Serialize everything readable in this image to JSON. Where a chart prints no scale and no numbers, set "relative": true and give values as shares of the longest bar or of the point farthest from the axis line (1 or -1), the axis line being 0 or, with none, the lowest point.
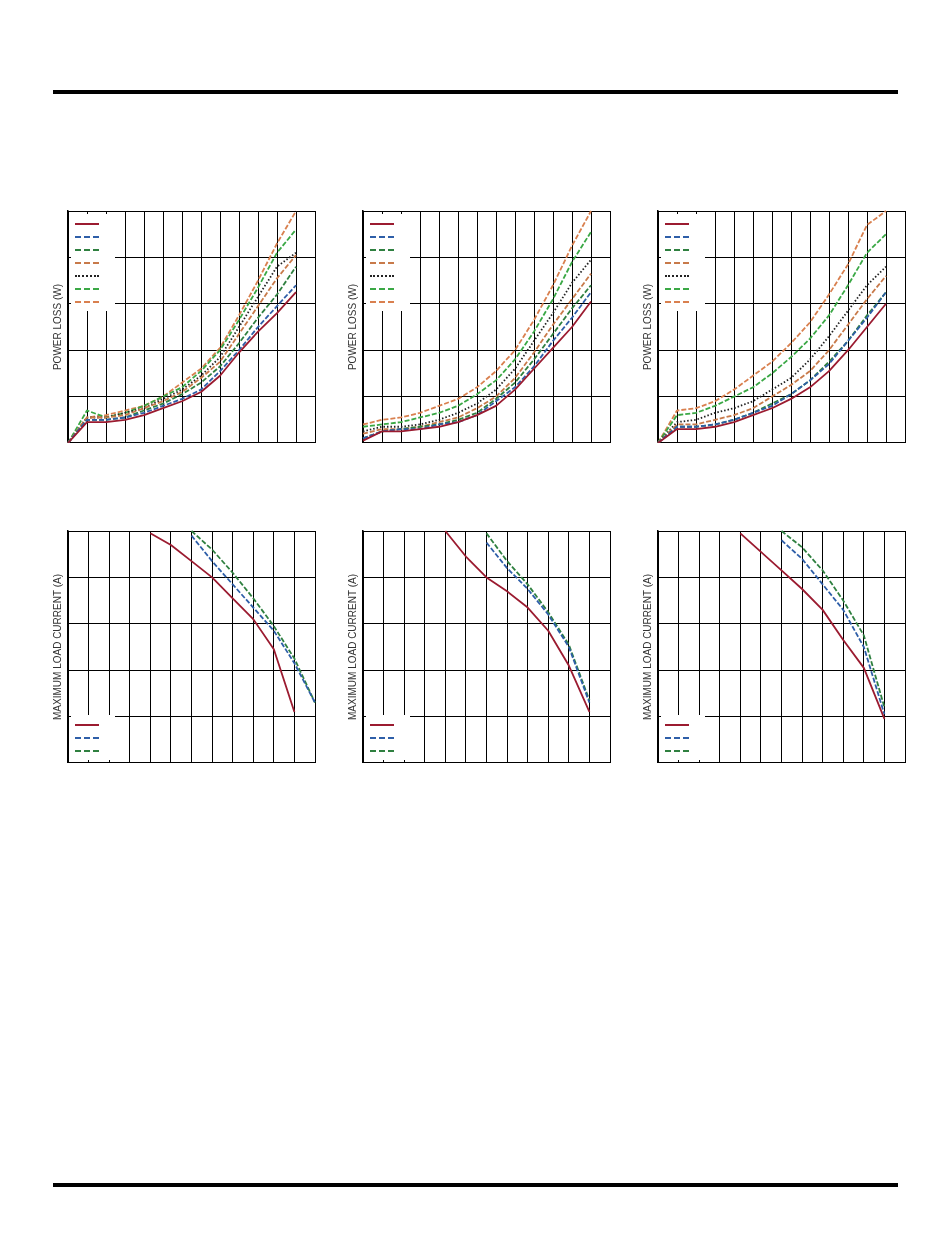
{
  "chart_data": [
    {
      "type": "line",
      "ylabel": "POWER LOSS (W)",
      "relative": true,
      "grid": true,
      "categories": [
        null,
        null,
        null,
        null,
        null,
        null,
        null,
        null,
        null,
        null,
        null,
        null,
        null,
        null
      ],
      "series": [
        {
          "color": "#9b1b30",
          "line_style": "solid",
          "values": [
            0,
            0.09,
            0.09,
            0.1,
            0.12,
            0.15,
            0.18,
            0.22,
            0.29,
            0.39,
            0.48,
            0.56,
            0.65,
            null
          ]
        },
        {
          "color": "#2e5ea8",
          "line_style": "dashed",
          "values": [
            0,
            0.1,
            0.1,
            0.11,
            0.13,
            0.16,
            0.19,
            0.23,
            0.31,
            0.4,
            0.5,
            0.59,
            0.68,
            null
          ]
        },
        {
          "color": "#2f8040",
          "line_style": "dashed",
          "values": [
            0,
            0.1,
            0.1,
            0.11,
            0.14,
            0.17,
            0.21,
            0.26,
            0.33,
            0.43,
            0.54,
            0.64,
            0.76,
            null
          ]
        },
        {
          "color": "#c87a4a",
          "line_style": "dashed",
          "values": [
            0,
            0.11,
            0.11,
            0.12,
            0.15,
            0.18,
            0.22,
            0.28,
            0.35,
            0.47,
            0.59,
            0.71,
            0.81,
            null
          ]
        },
        {
          "color": "#222222",
          "line_style": "dotted",
          "values": [
            0,
            0.11,
            0.11,
            0.13,
            0.15,
            0.19,
            0.23,
            0.29,
            0.37,
            0.5,
            0.63,
            0.76,
            0.82,
            null
          ]
        },
        {
          "color": "#3aa845",
          "line_style": "dashed",
          "values": [
            0,
            0.14,
            0.11,
            0.13,
            0.16,
            0.2,
            0.24,
            0.31,
            0.4,
            0.53,
            0.67,
            0.82,
            0.92,
            null
          ]
        },
        {
          "color": "#d9804f",
          "line_style": "dashed",
          "values": [
            0,
            0.11,
            0.12,
            0.14,
            0.16,
            0.2,
            0.26,
            0.32,
            0.41,
            0.55,
            0.7,
            0.86,
            1,
            null
          ]
        }
      ]
    },
    {
      "type": "line",
      "ylabel": "POWER LOSS (W)",
      "relative": true,
      "grid": true,
      "categories": [
        null,
        null,
        null,
        null,
        null,
        null,
        null,
        null,
        null,
        null,
        null,
        null,
        null,
        null
      ],
      "series": [
        {
          "color": "#9b1b30",
          "line_style": "solid",
          "values": [
            0.01,
            0.05,
            0.05,
            0.06,
            0.07,
            0.09,
            0.12,
            0.16,
            0.23,
            0.32,
            0.41,
            0.5,
            0.61,
            null
          ]
        },
        {
          "color": "#2e5ea8",
          "line_style": "dashed",
          "values": [
            0.02,
            0.05,
            0.06,
            0.06,
            0.08,
            0.09,
            0.12,
            0.18,
            0.24,
            0.33,
            0.44,
            0.54,
            0.65,
            null
          ]
        },
        {
          "color": "#2f8040",
          "line_style": "dashed",
          "values": [
            0.02,
            0.05,
            0.06,
            0.07,
            0.08,
            0.1,
            0.13,
            0.19,
            0.26,
            0.36,
            0.47,
            0.58,
            0.68,
            null
          ]
        },
        {
          "color": "#c87a4a",
          "line_style": "dashed",
          "values": [
            0.04,
            0.06,
            0.06,
            0.07,
            0.09,
            0.11,
            0.15,
            0.2,
            0.28,
            0.39,
            0.51,
            0.62,
            0.73,
            null
          ]
        },
        {
          "color": "#222222",
          "line_style": "dotted",
          "values": [
            0.05,
            0.07,
            0.07,
            0.08,
            0.1,
            0.13,
            0.17,
            0.23,
            0.32,
            0.44,
            0.56,
            0.69,
            0.79,
            null
          ]
        },
        {
          "color": "#3aa845",
          "line_style": "dashed",
          "values": [
            0.07,
            0.08,
            0.09,
            0.11,
            0.13,
            0.16,
            0.21,
            0.27,
            0.36,
            0.48,
            0.62,
            0.78,
            0.91,
            null
          ]
        },
        {
          "color": "#d9804f",
          "line_style": "dashed",
          "values": [
            0.08,
            0.1,
            0.11,
            0.13,
            0.16,
            0.19,
            0.24,
            0.31,
            0.4,
            0.53,
            0.68,
            0.85,
            1,
            null
          ]
        }
      ]
    },
    {
      "type": "line",
      "ylabel": "POWER LOSS (W)",
      "relative": true,
      "grid": true,
      "categories": [
        null,
        null,
        null,
        null,
        null,
        null,
        null,
        null,
        null,
        null,
        null,
        null,
        null,
        null
      ],
      "series": [
        {
          "color": "#9b1b30",
          "line_style": "solid",
          "values": [
            0,
            0.06,
            0.06,
            0.07,
            0.09,
            0.12,
            0.15,
            0.19,
            0.24,
            0.31,
            0.4,
            0.5,
            0.6,
            null
          ]
        },
        {
          "color": "#2e5ea8",
          "line_style": "dashed",
          "values": [
            0,
            0.07,
            0.07,
            0.08,
            0.1,
            0.13,
            0.16,
            0.21,
            0.27,
            0.34,
            0.44,
            0.54,
            0.65,
            null
          ]
        },
        {
          "color": "#2f8040",
          "line_style": "dashed",
          "values": [
            0,
            0.07,
            0.07,
            0.08,
            0.1,
            0.13,
            0.17,
            0.21,
            0.27,
            0.35,
            0.44,
            0.55,
            0.65,
            null
          ]
        },
        {
          "color": "#c87a4a",
          "line_style": "dashed",
          "values": [
            0,
            0.08,
            0.08,
            0.1,
            0.12,
            0.15,
            0.2,
            0.25,
            0.31,
            0.4,
            0.51,
            0.62,
            0.72,
            null
          ]
        },
        {
          "color": "#222222",
          "line_style": "dotted",
          "values": [
            0,
            0.09,
            0.1,
            0.13,
            0.15,
            0.18,
            0.23,
            0.28,
            0.36,
            0.46,
            0.57,
            0.68,
            0.76,
            null
          ]
        },
        {
          "color": "#3aa845",
          "line_style": "dashed",
          "values": [
            0,
            0.12,
            0.13,
            0.16,
            0.2,
            0.24,
            0.3,
            0.37,
            0.45,
            0.55,
            0.68,
            0.82,
            0.9,
            null
          ]
        },
        {
          "color": "#d9804f",
          "line_style": "dashed",
          "values": [
            0,
            0.14,
            0.15,
            0.18,
            0.23,
            0.29,
            0.35,
            0.43,
            0.52,
            0.64,
            0.77,
            0.94,
            1,
            null
          ]
        }
      ]
    },
    {
      "type": "line",
      "ylabel": "MAXIMUM LOAD CURRENT (A)",
      "relative": true,
      "grid": true,
      "categories": [
        null,
        null,
        null,
        null,
        null,
        null,
        null,
        null,
        null,
        null,
        null,
        null,
        null
      ],
      "series": [
        {
          "color": "#9b1b30",
          "line_style": "solid",
          "values": [
            null,
            null,
            null,
            null,
            0.99,
            0.94,
            0.87,
            0.8,
            0.71,
            0.62,
            0.49,
            0.22,
            null
          ]
        },
        {
          "color": "#2e5ea8",
          "line_style": "dashed",
          "values": [
            null,
            null,
            null,
            null,
            null,
            null,
            0.98,
            0.87,
            0.77,
            0.67,
            0.57,
            0.43,
            0.26
          ]
        },
        {
          "color": "#2f8040",
          "line_style": "dashed",
          "values": [
            null,
            null,
            null,
            null,
            null,
            null,
            1,
            0.92,
            0.82,
            0.71,
            0.59,
            0.45,
            0.26
          ]
        }
      ]
    },
    {
      "type": "line",
      "ylabel": "MAXIMUM LOAD CURRENT (A)",
      "relative": true,
      "grid": true,
      "categories": [
        null,
        null,
        null,
        null,
        null,
        null,
        null,
        null,
        null,
        null,
        null,
        null,
        null
      ],
      "series": [
        {
          "color": "#9b1b30",
          "line_style": "solid",
          "values": [
            null,
            null,
            null,
            null,
            1,
            0.89,
            0.8,
            0.74,
            0.67,
            0.57,
            0.42,
            0.22,
            null
          ]
        },
        {
          "color": "#2e5ea8",
          "line_style": "dashed",
          "values": [
            null,
            null,
            null,
            null,
            null,
            null,
            0.95,
            0.84,
            0.75,
            0.64,
            0.5,
            0.26,
            null
          ]
        },
        {
          "color": "#2f8040",
          "line_style": "dashed",
          "values": [
            null,
            null,
            null,
            null,
            null,
            null,
            0.99,
            0.87,
            0.77,
            0.65,
            0.51,
            0.27,
            null
          ]
        }
      ]
    },
    {
      "type": "line",
      "ylabel": "MAXIMUM LOAD CURRENT (A)",
      "relative": true,
      "grid": true,
      "categories": [
        null,
        null,
        null,
        null,
        null,
        null,
        null,
        null,
        null,
        null,
        null,
        null,
        null
      ],
      "series": [
        {
          "color": "#9b1b30",
          "line_style": "solid",
          "values": [
            null,
            null,
            null,
            null,
            0.99,
            0.91,
            0.83,
            0.75,
            0.66,
            0.53,
            0.41,
            0.19,
            null
          ]
        },
        {
          "color": "#2e5ea8",
          "line_style": "dashed",
          "values": [
            null,
            null,
            null,
            null,
            null,
            null,
            0.96,
            0.88,
            0.77,
            0.66,
            0.5,
            0.21,
            null
          ]
        },
        {
          "color": "#2f8040",
          "line_style": "dashed",
          "values": [
            null,
            null,
            null,
            null,
            null,
            null,
            1,
            0.93,
            0.83,
            0.7,
            0.55,
            0.24,
            null
          ]
        }
      ]
    }
  ]
}
